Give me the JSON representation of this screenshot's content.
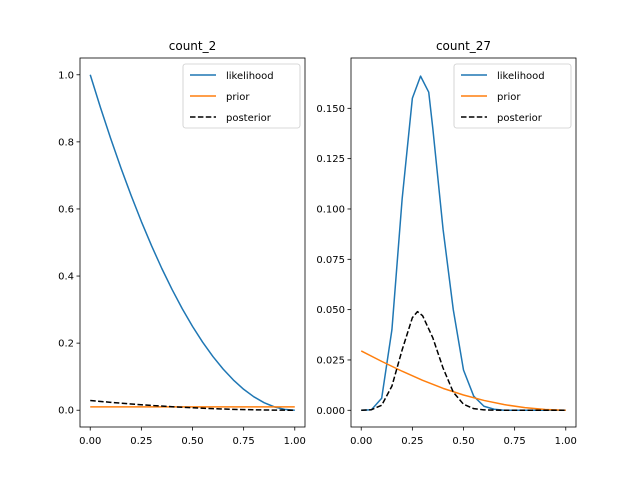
{
  "chart_data": [
    {
      "type": "line",
      "title": "count_2",
      "xlabel": "",
      "ylabel": "",
      "xlim": [
        -0.05,
        1.05
      ],
      "ylim": [
        -0.05,
        1.05
      ],
      "xticks": [
        0.0,
        0.25,
        0.5,
        0.75,
        1.0
      ],
      "xtick_labels": [
        "0.00",
        "0.25",
        "0.50",
        "0.75",
        "1.00"
      ],
      "yticks": [
        0.0,
        0.2,
        0.4,
        0.6,
        0.8,
        1.0
      ],
      "ytick_labels": [
        "0.0",
        "0.2",
        "0.4",
        "0.6",
        "0.8",
        "1.0"
      ],
      "legend_position": "top-right",
      "series": [
        {
          "name": "likelihood",
          "color": "#1f77b4",
          "dash": "solid",
          "x": [
            0.0,
            0.05,
            0.1,
            0.15,
            0.2,
            0.25,
            0.3,
            0.35,
            0.4,
            0.45,
            0.5,
            0.55,
            0.6,
            0.65,
            0.7,
            0.75,
            0.8,
            0.85,
            0.9,
            0.95,
            1.0
          ],
          "y": [
            1.0,
            0.9025,
            0.81,
            0.7225,
            0.64,
            0.5625,
            0.49,
            0.4225,
            0.36,
            0.3025,
            0.25,
            0.2025,
            0.16,
            0.1225,
            0.09,
            0.0625,
            0.04,
            0.0225,
            0.01,
            0.0025,
            0.0
          ]
        },
        {
          "name": "prior",
          "color": "#ff7f0e",
          "dash": "solid",
          "x": [
            0.0,
            1.0
          ],
          "y": [
            0.01,
            0.01
          ]
        },
        {
          "name": "posterior",
          "color": "#000000",
          "dash": "dashed",
          "x": [
            0.0,
            0.1,
            0.2,
            0.3,
            0.4,
            0.5,
            0.6,
            0.7,
            0.8,
            0.9,
            1.0
          ],
          "y": [
            0.029,
            0.0235,
            0.0186,
            0.0142,
            0.0104,
            0.0073,
            0.0046,
            0.0026,
            0.0012,
            0.0003,
            0.0
          ]
        }
      ]
    },
    {
      "type": "line",
      "title": "count_27",
      "xlabel": "",
      "ylabel": "",
      "xlim": [
        -0.05,
        1.05
      ],
      "ylim": [
        -0.0083,
        0.175
      ],
      "xticks": [
        0.0,
        0.25,
        0.5,
        0.75,
        1.0
      ],
      "xtick_labels": [
        "0.00",
        "0.25",
        "0.50",
        "0.75",
        "1.00"
      ],
      "yticks": [
        0.0,
        0.025,
        0.05,
        0.075,
        0.1,
        0.125,
        0.15
      ],
      "ytick_labels": [
        "0.000",
        "0.025",
        "0.050",
        "0.075",
        "0.100",
        "0.125",
        "0.150"
      ],
      "legend_position": "top-right",
      "series": [
        {
          "name": "likelihood",
          "color": "#1f77b4",
          "dash": "solid",
          "x": [
            0.0,
            0.05,
            0.1,
            0.15,
            0.2,
            0.25,
            0.29,
            0.33,
            0.35,
            0.4,
            0.45,
            0.5,
            0.55,
            0.6,
            0.65,
            0.7,
            0.8,
            0.9,
            1.0
          ],
          "y": [
            0.0,
            0.0003,
            0.006,
            0.04,
            0.105,
            0.155,
            0.166,
            0.158,
            0.14,
            0.09,
            0.05,
            0.02,
            0.007,
            0.002,
            0.0005,
            0.0,
            0.0,
            0.0,
            0.0
          ]
        },
        {
          "name": "prior",
          "color": "#ff7f0e",
          "dash": "solid",
          "x": [
            0.0,
            0.1,
            0.2,
            0.3,
            0.4,
            0.5,
            0.6,
            0.7,
            0.8,
            0.9,
            1.0
          ],
          "y": [
            0.0295,
            0.0243,
            0.0194,
            0.0149,
            0.0109,
            0.0076,
            0.0049,
            0.0028,
            0.0013,
            0.0004,
            0.0
          ]
        },
        {
          "name": "posterior",
          "color": "#000000",
          "dash": "dashed",
          "x": [
            0.0,
            0.05,
            0.1,
            0.15,
            0.2,
            0.25,
            0.275,
            0.3,
            0.35,
            0.4,
            0.45,
            0.5,
            0.55,
            0.6,
            0.7,
            0.8,
            1.0
          ],
          "y": [
            0.0,
            0.0003,
            0.0025,
            0.012,
            0.03,
            0.046,
            0.049,
            0.047,
            0.036,
            0.021,
            0.009,
            0.003,
            0.0008,
            0.0002,
            0.0,
            0.0,
            0.0
          ]
        }
      ]
    }
  ]
}
